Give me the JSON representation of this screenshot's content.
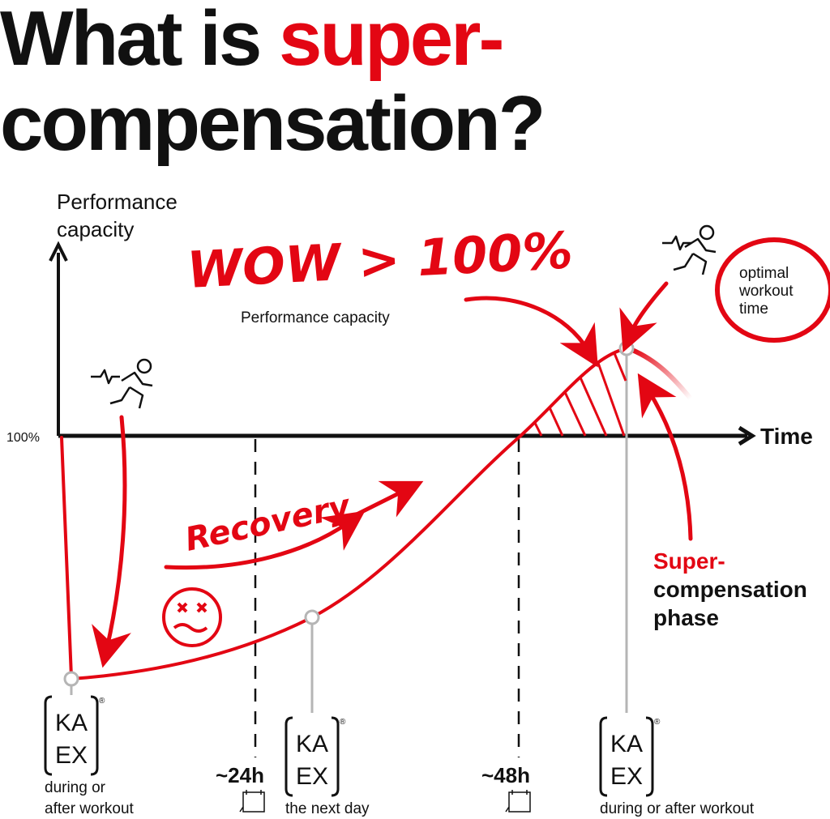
{
  "title": {
    "part1": "What is ",
    "part2": "super-",
    "line2": "compensation?"
  },
  "axes": {
    "y_label_line1": "Performance",
    "y_label_line2": "capacity",
    "x_label": "Time",
    "baseline_label": "100%"
  },
  "annotations": {
    "wow": "WOW > 100%",
    "wow_sub": "Performance capacity",
    "recovery": "Recovery",
    "optimal_line1": "optimal",
    "optimal_line2": "workout",
    "optimal_line3": "time",
    "phase_line1": "Super-",
    "phase_line2": "compensation",
    "phase_line3": "phase"
  },
  "time_marks": [
    "~24h",
    "~48h"
  ],
  "products": [
    {
      "logo_top": "KA",
      "logo_bottom": "EX",
      "mark": "®",
      "caption_line1": "during or",
      "caption_line2": "after workout"
    },
    {
      "logo_top": "KA",
      "logo_bottom": "EX",
      "mark": "®",
      "caption_line1": "the next day"
    },
    {
      "logo_top": "KA",
      "logo_bottom": "EX",
      "mark": "®",
      "caption_line1": "during or after workout"
    }
  ],
  "colors": {
    "accent": "#e30613",
    "text": "#111111",
    "guide": "#b5b5b5"
  }
}
